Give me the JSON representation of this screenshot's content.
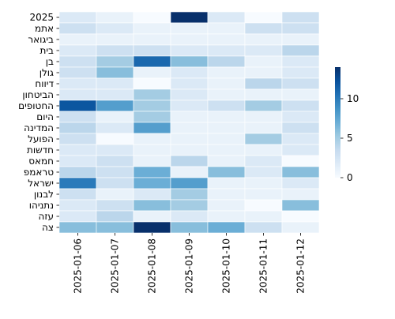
{
  "chart_data": {
    "type": "heatmap",
    "x": [
      "2025-01-06",
      "2025-01-07",
      "2025-01-08",
      "2025-01-09",
      "2025-01-10",
      "2025-01-11",
      "2025-01-12"
    ],
    "y": [
      "2025",
      "אתמ",
      "ביגואר",
      "בית",
      "בן",
      "גולן",
      "דיווח",
      "הביטחון",
      "החטופים",
      "היום",
      "המדינה",
      "הפועל",
      "חדשות",
      "חמאס",
      "טראמפ",
      "ישראל",
      "לבנון",
      "נתניהו",
      "עזה",
      "צה"
    ],
    "values": [
      [
        2,
        1,
        0,
        14,
        2,
        0,
        3
      ],
      [
        3,
        2,
        1,
        1,
        1,
        3,
        3
      ],
      [
        1,
        1,
        1,
        1,
        1,
        1,
        1
      ],
      [
        2,
        3,
        3,
        2,
        2,
        2,
        4
      ],
      [
        3,
        5,
        11,
        6,
        4,
        1,
        2
      ],
      [
        3,
        6,
        1,
        2,
        1,
        1,
        2
      ],
      [
        2,
        2,
        0,
        2,
        1,
        4,
        3
      ],
      [
        2,
        2,
        5,
        2,
        1,
        1,
        1
      ],
      [
        12,
        8,
        5,
        2,
        3,
        5,
        3
      ],
      [
        3,
        1,
        5,
        1,
        1,
        1,
        2
      ],
      [
        4,
        2,
        8,
        1,
        1,
        1,
        3
      ],
      [
        3,
        0,
        1,
        1,
        1,
        5,
        2
      ],
      [
        2,
        2,
        1,
        1,
        1,
        1,
        2
      ],
      [
        2,
        3,
        1,
        4,
        1,
        2,
        0
      ],
      [
        4,
        3,
        7,
        1,
        6,
        2,
        6
      ],
      [
        10,
        3,
        7,
        8,
        1,
        1,
        2
      ],
      [
        3,
        1,
        2,
        5,
        1,
        1,
        1
      ],
      [
        2,
        3,
        6,
        5,
        1,
        0,
        6
      ],
      [
        2,
        4,
        1,
        2,
        1,
        1,
        0
      ],
      [
        6,
        6,
        14,
        6,
        7,
        3,
        1
      ]
    ],
    "colorbar": {
      "min": 0,
      "max": 14,
      "ticks": [
        0,
        5,
        10
      ]
    },
    "colormap": [
      "#f7fbff",
      "#deebf7",
      "#c6dbef",
      "#9ecae1",
      "#6baed6",
      "#4292c6",
      "#2171b5",
      "#08519c",
      "#08306b"
    ],
    "cell_border_color": "#ffffff"
  }
}
